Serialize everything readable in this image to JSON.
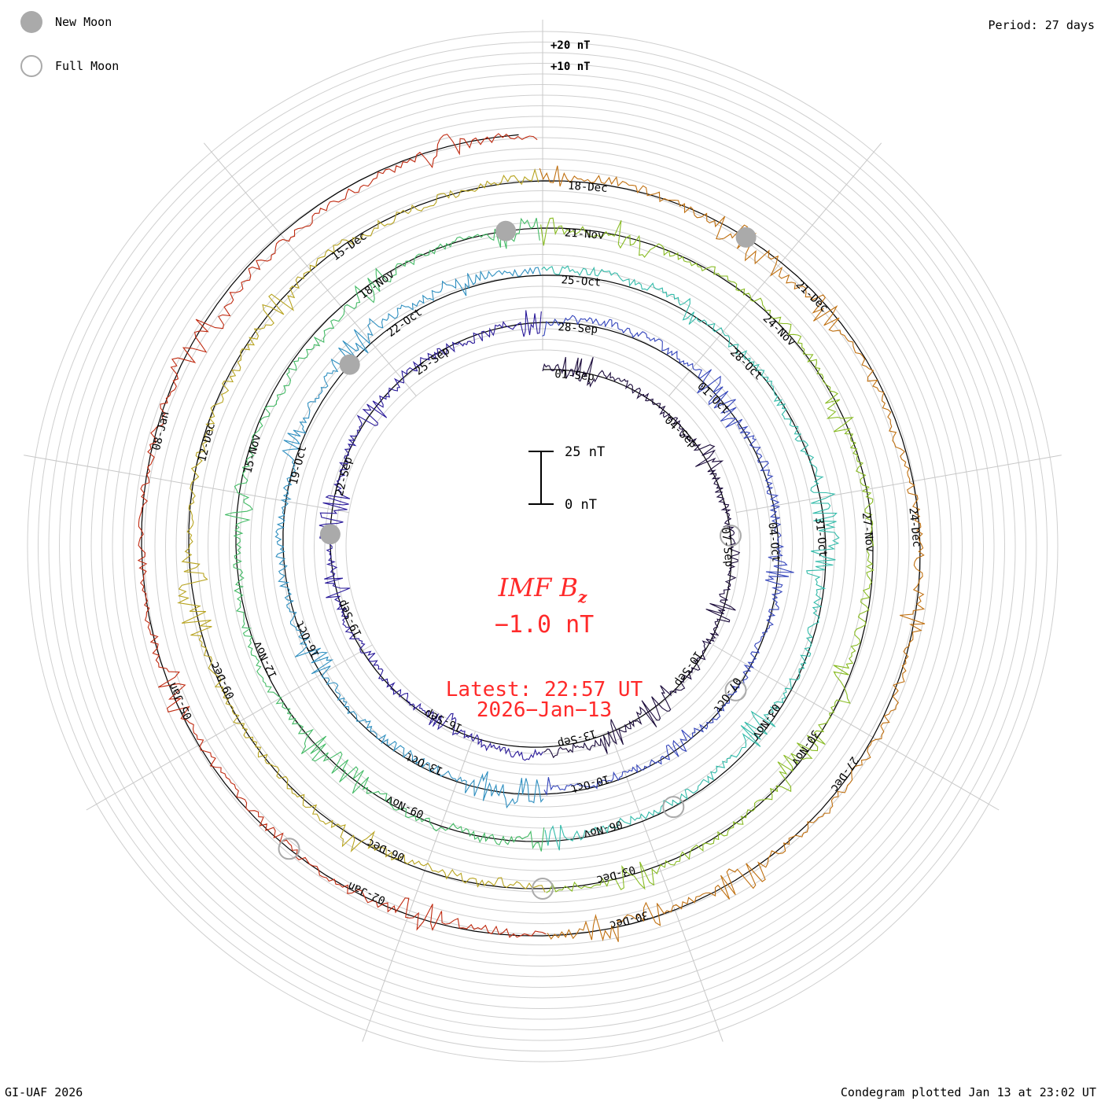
{
  "header": {
    "period": "Period: 27 days",
    "credit": "GI-UAF 2026",
    "plotted": "Condegram plotted Jan 13 at 23:02 UT"
  },
  "legend": {
    "new_moon": "New Moon",
    "full_moon": "Full Moon"
  },
  "chart_data": {
    "type": "line",
    "subtype": "condegram (spiral time series)",
    "title": "IMF B",
    "title_subscript": "z",
    "current_value": "−1.0 nT",
    "latest_label": "Latest: 22:57 UT",
    "latest_date": "2026−Jan−13",
    "scale_bar": {
      "top_label": "25 nT",
      "bottom_label": "0 nT",
      "span_nT": 25
    },
    "ring_labels": [
      "+20 nT",
      "+10 nT"
    ],
    "period_days": 27,
    "start_date": "2025-09-01",
    "end_date": "2026-01-13",
    "date_labels": [
      "01-Sep",
      "04-Sep",
      "07-Sep",
      "10-Sep",
      "13-Sep",
      "16-Sep",
      "19-Sep",
      "22-Sep",
      "25-Sep",
      "28-Sep",
      "01-Oct",
      "04-Oct",
      "07-Oct",
      "10-Oct",
      "13-Oct",
      "16-Oct",
      "19-Oct",
      "22-Oct",
      "25-Oct",
      "28-Oct",
      "31-Oct",
      "03-Nov",
      "06-Nov",
      "09-Nov",
      "12-Nov",
      "15-Nov",
      "18-Nov",
      "21-Nov",
      "24-Nov",
      "27-Nov",
      "30-Nov",
      "03-Dec",
      "06-Dec",
      "09-Dec",
      "12-Dec",
      "15-Dec",
      "18-Dec",
      "21-Dec",
      "24-Dec",
      "27-Dec",
      "30-Dec",
      "02-Jan",
      "05-Jan",
      "08-Jan"
    ],
    "new_moon_dates": [
      "2025-09-21",
      "2025-10-21",
      "2025-11-20",
      "2025-12-20"
    ],
    "full_moon_dates": [
      "2025-09-07",
      "2025-10-07",
      "2025-11-05",
      "2025-12-04",
      "2026-01-03"
    ],
    "series_colors": [
      "#1a0a3a",
      "#2a1a9a",
      "#3344bb",
      "#2f8fc0",
      "#33bbaa",
      "#44bb66",
      "#88bb22",
      "#b8a420",
      "#c07010",
      "#c02a10"
    ]
  }
}
